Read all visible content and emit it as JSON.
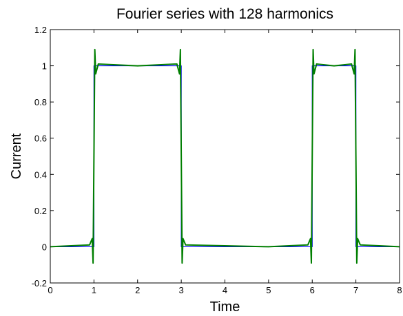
{
  "chart_data": {
    "type": "line",
    "title": "Fourier series with 128 harmonics",
    "xlabel": "Time",
    "ylabel": "Current",
    "xlim": [
      0,
      8
    ],
    "ylim": [
      -0.2,
      1.2
    ],
    "xticks": [
      0,
      1,
      2,
      3,
      4,
      5,
      6,
      7,
      8
    ],
    "yticks": [
      -0.2,
      0,
      0.2,
      0.4,
      0.6,
      0.8,
      1,
      1.2
    ],
    "xtick_labels": [
      "0",
      "1",
      "2",
      "3",
      "4",
      "5",
      "6",
      "7",
      "8"
    ],
    "ytick_labels": [
      "-0.2",
      "0",
      "0.2",
      "0.4",
      "0.6",
      "0.8",
      "1",
      "1.2"
    ],
    "grid": false,
    "series": [
      {
        "color": "#0000ff",
        "x": [
          0,
          1,
          1,
          3,
          3,
          6,
          6,
          7,
          7,
          8
        ],
        "y": [
          0,
          0,
          1,
          1,
          0,
          0,
          1,
          1,
          0,
          0
        ]
      },
      {
        "color": "#007f00",
        "x": [
          0,
          0.9,
          0.96,
          0.98,
          1.0,
          1.02,
          1.04,
          1.1,
          2.0,
          2.9,
          2.96,
          2.98,
          3.0,
          3.02,
          3.04,
          3.1,
          5.0,
          5.9,
          5.96,
          5.98,
          6.0,
          6.02,
          6.04,
          6.1,
          6.5,
          6.9,
          6.96,
          6.98,
          7.0,
          7.02,
          7.04,
          7.1,
          8.0
        ],
        "y": [
          0,
          0.01,
          0.045,
          -0.09,
          0.5,
          1.09,
          0.955,
          1.01,
          1.0,
          1.01,
          0.955,
          1.09,
          0.5,
          -0.09,
          0.045,
          0.01,
          0.0,
          0.01,
          0.045,
          -0.09,
          0.5,
          1.09,
          0.955,
          1.01,
          1.0,
          1.01,
          0.955,
          1.09,
          0.5,
          -0.09,
          0.045,
          0.01,
          0.0
        ]
      }
    ]
  }
}
